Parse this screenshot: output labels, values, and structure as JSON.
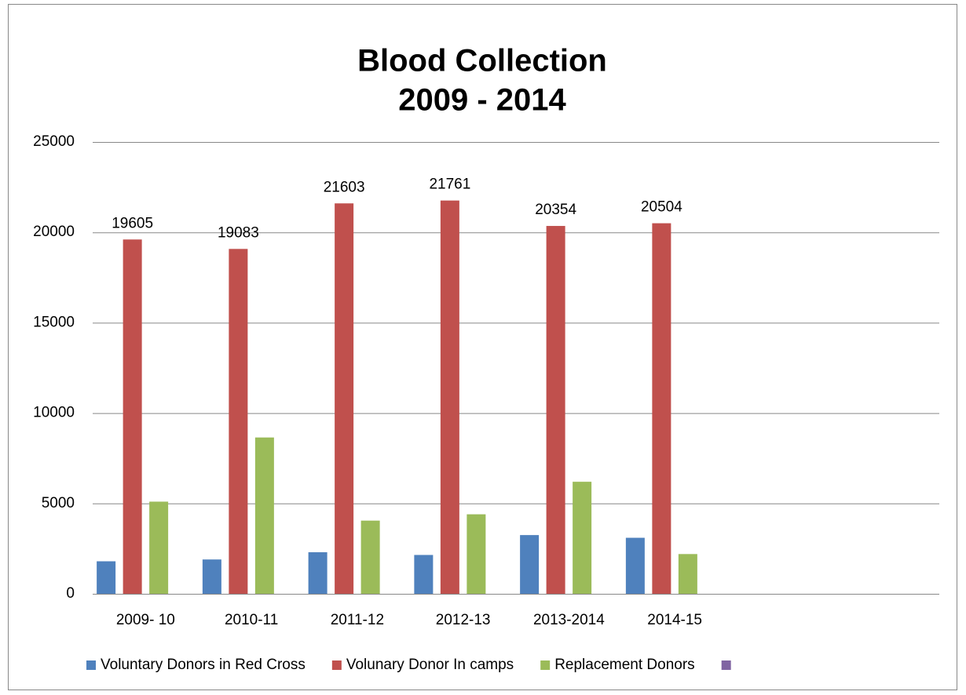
{
  "chart_data": {
    "type": "bar",
    "title": [
      "Blood Collection",
      "2009 - 2014"
    ],
    "categories": [
      "2009- 10",
      "2010-11",
      "2011-12",
      "2012-13",
      "2013-2014",
      "2014-15",
      null,
      null
    ],
    "series": [
      {
        "name": "Voluntary Donors in Red Cross",
        "color": "#4f81bd",
        "values": [
          1800,
          1900,
          2300,
          2150,
          3250,
          3100,
          null,
          null
        ]
      },
      {
        "name": "Volunary Donor In camps",
        "color": "#c0504d",
        "values": [
          19605,
          19083,
          21603,
          21761,
          20354,
          20504,
          null,
          null
        ],
        "show_labels": true
      },
      {
        "name": "Replacement Donors",
        "color": "#9bbb59",
        "values": [
          5100,
          8650,
          4050,
          4400,
          6200,
          2200,
          null,
          null
        ]
      },
      {
        "name": null,
        "color": "#8064a2",
        "values": [
          null,
          null,
          null,
          null,
          null,
          null,
          null,
          null
        ]
      }
    ],
    "ylim": [
      0,
      25000
    ],
    "yticks": [
      0,
      5000,
      10000,
      15000,
      20000,
      25000
    ],
    "grid": true,
    "legend": "bottom"
  }
}
